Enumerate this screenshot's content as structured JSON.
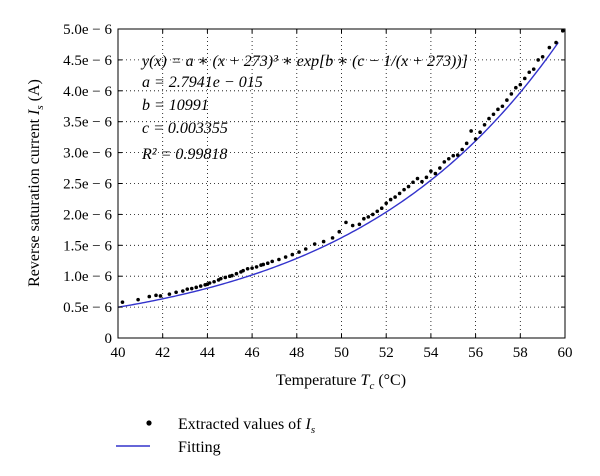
{
  "chart_data": {
    "type": "scatter",
    "x_label_prefix": "Temperature ",
    "x_label_var": "T",
    "x_label_sub": "c",
    "x_label_unit": " (°C)",
    "y_label_prefix": "Reverse saturation current ",
    "y_label_var": "I",
    "y_label_sub": "s",
    "y_label_unit": " (A)",
    "xlim": [
      40,
      60
    ],
    "ylim": [
      0,
      5e-06
    ],
    "x_ticks": [
      40,
      42,
      44,
      46,
      48,
      50,
      52,
      54,
      56,
      58,
      60
    ],
    "x_tick_labels": [
      "40",
      "42",
      "44",
      "46",
      "48",
      "50",
      "52",
      "54",
      "56",
      "58",
      "60"
    ],
    "y_ticks": [
      0,
      5e-07,
      1e-06,
      1.5e-06,
      2e-06,
      2.5e-06,
      3e-06,
      3.5e-06,
      4e-06,
      4.5e-06,
      5e-06
    ],
    "y_tick_labels": [
      "0",
      "0.5e − 6",
      "1.0e − 6",
      "1.5e − 6",
      "2.0e − 6",
      "2.5e − 6",
      "3.0e − 6",
      "3.5e − 6",
      "4.0e − 6",
      "4.5e − 6",
      "5.0e − 6"
    ],
    "grid": true,
    "annotations": [
      "y(x) = a ∗ (x + 273)³ ∗ exp[b ∗ (c − 1/(x + 273))]",
      "a = 2.7941e − 015",
      "b = 10991",
      "c = 0.003355",
      "R² = 0.99818"
    ],
    "fit": {
      "a": 2.7941e-15,
      "b": 10991,
      "c": 0.003355,
      "r_squared": 0.99818
    },
    "series": [
      {
        "name": "Extracted values of Is",
        "legend_text": "Extracted values of ",
        "legend_var": "I",
        "legend_sub": "s",
        "kind": "points",
        "color": "#000000",
        "x": [
          40.2,
          40.9,
          41.4,
          41.7,
          41.9,
          42.3,
          42.6,
          42.9,
          43.1,
          43.3,
          43.5,
          43.7,
          43.9,
          44.0,
          44.1,
          44.3,
          44.5,
          44.6,
          44.8,
          45.0,
          45.1,
          45.3,
          45.5,
          45.6,
          45.8,
          46.0,
          46.2,
          46.4,
          46.5,
          46.7,
          46.9,
          47.2,
          47.5,
          47.8,
          48.1,
          48.4,
          48.8,
          49.2,
          49.6,
          49.9,
          50.2,
          50.5,
          50.8,
          51.0,
          51.2,
          51.4,
          51.6,
          51.8,
          52.0,
          52.2,
          52.4,
          52.6,
          52.8,
          53.0,
          53.2,
          53.4,
          53.6,
          53.8,
          54.0,
          54.2,
          54.4,
          54.6,
          54.8,
          55.0,
          55.2,
          55.4,
          55.6,
          55.8,
          56.0,
          56.2,
          56.4,
          56.6,
          56.8,
          57.0,
          57.2,
          57.4,
          57.6,
          57.8,
          58.0,
          58.2,
          58.4,
          58.6,
          58.8,
          59.0,
          59.3,
          59.6,
          59.9
        ],
        "y": [
          5.8e-07,
          6.2e-07,
          6.7e-07,
          6.9e-07,
          6.8e-07,
          7.1e-07,
          7.4e-07,
          7.6e-07,
          7.9e-07,
          8e-07,
          8.2e-07,
          8.4e-07,
          8.6e-07,
          8.7e-07,
          8.9e-07,
          9.1e-07,
          9.4e-07,
          9.6e-07,
          9.8e-07,
          1e-06,
          1.01e-06,
          1.04e-06,
          1.07e-06,
          1.09e-06,
          1.12e-06,
          1.13e-06,
          1.15e-06,
          1.18e-06,
          1.19e-06,
          1.21e-06,
          1.24e-06,
          1.27e-06,
          1.31e-06,
          1.35e-06,
          1.39e-06,
          1.44e-06,
          1.52e-06,
          1.56e-06,
          1.62e-06,
          1.72e-06,
          1.87e-06,
          1.82e-06,
          1.84e-06,
          1.93e-06,
          1.96e-06,
          2e-06,
          2.05e-06,
          2.1e-06,
          2.18e-06,
          2.24e-06,
          2.28e-06,
          2.34e-06,
          2.4e-06,
          2.45e-06,
          2.52e-06,
          2.58e-06,
          2.53e-06,
          2.6e-06,
          2.7e-06,
          2.66e-06,
          2.75e-06,
          2.85e-06,
          2.9e-06,
          2.95e-06,
          2.96e-06,
          3.05e-06,
          3.15e-06,
          3.35e-06,
          3.22e-06,
          3.33e-06,
          3.45e-06,
          3.55e-06,
          3.62e-06,
          3.7e-06,
          3.75e-06,
          3.85e-06,
          3.95e-06,
          4.05e-06,
          4.1e-06,
          4.2e-06,
          4.3e-06,
          4.35e-06,
          4.5e-06,
          4.55e-06,
          4.7e-06,
          4.78e-06,
          4.97e-06
        ]
      },
      {
        "name": "Fitting",
        "legend_text": "Fitting",
        "kind": "line",
        "color": "#3333cc"
      }
    ]
  }
}
